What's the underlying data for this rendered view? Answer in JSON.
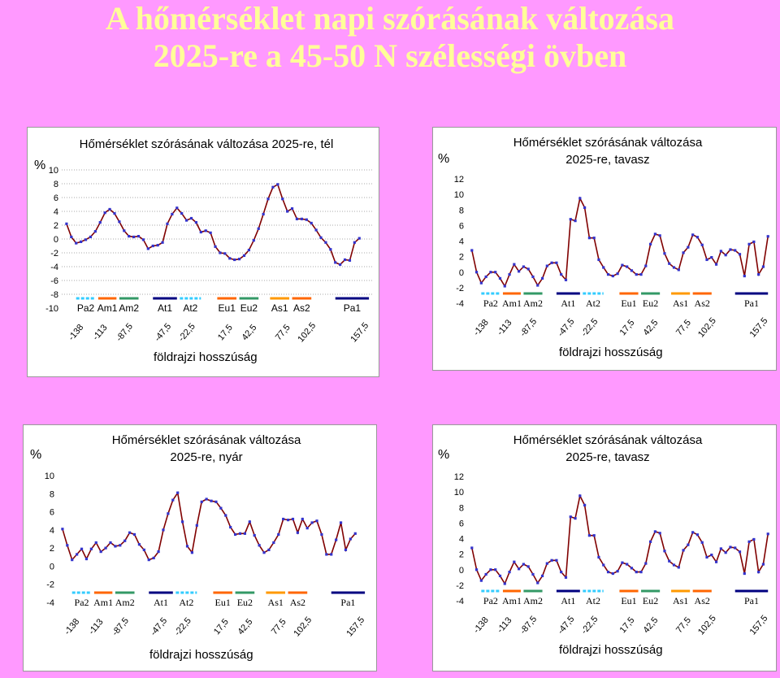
{
  "page": {
    "title_line1": "A hőmérséklet napi szórásának változása",
    "title_line2": "2025-re a 45-50 N szélességi övben"
  },
  "colors": {
    "background": "#ff99ff",
    "title": "#ffff99",
    "line": "#800000",
    "marker": "#3333cc"
  },
  "chart_data": [
    {
      "type": "line",
      "title_lines": [
        "Hőmérséklet szórásának változása 2025-re, tél"
      ],
      "ylabel": "%",
      "xlabel": "földrajzi hosszúság",
      "ylim": [
        -10,
        10
      ],
      "yticks": [
        -10,
        -8,
        -6,
        -4,
        -2,
        0,
        2,
        4,
        6,
        8,
        10
      ],
      "grid": true,
      "x_tick_labels": [
        {
          "label": "-138",
          "x": -138
        },
        {
          "label": "-113",
          "x": -113
        },
        {
          "label": "-87,5",
          "x": -87.5
        },
        {
          "label": "-47,5",
          "x": -47.5
        },
        {
          "label": "-22,5",
          "x": -22.5
        },
        {
          "label": "17,5",
          "x": 17.5
        },
        {
          "label": "42,5",
          "x": 42.5
        },
        {
          "label": "77,5",
          "x": 77.5
        },
        {
          "label": "102,5",
          "x": 102.5
        },
        {
          "label": "157,5",
          "x": 157.5
        }
      ],
      "regions": [
        {
          "label": "Pa2",
          "x_from": -145,
          "x_to": -125,
          "color": "#33ccff"
        },
        {
          "label": "Am1",
          "x_from": -122,
          "x_to": -103,
          "color": "#ff6600"
        },
        {
          "label": "Am2",
          "x_from": -100,
          "x_to": -80,
          "color": "#339966"
        },
        {
          "label": "At1",
          "x_from": -65,
          "x_to": -40,
          "color": "#000080"
        },
        {
          "label": "At2",
          "x_from": -37,
          "x_to": -15,
          "color": "#33ccff"
        },
        {
          "label": "Eu1",
          "x_from": 2,
          "x_to": 22,
          "color": "#ff6600"
        },
        {
          "label": "Eu2",
          "x_from": 25,
          "x_to": 45,
          "color": "#339966"
        },
        {
          "label": "As1",
          "x_from": 57,
          "x_to": 77,
          "color": "#ff9900"
        },
        {
          "label": "As2",
          "x_from": 80,
          "x_to": 100,
          "color": "#ff6600"
        },
        {
          "label": "Pa1",
          "x_from": 125,
          "x_to": 160,
          "color": "#000080"
        }
      ],
      "x": [
        -155,
        -150,
        -145,
        -140,
        -135,
        -130,
        -125,
        -120,
        -115,
        -110,
        -105,
        -100,
        -95,
        -90,
        -85,
        -80,
        -75,
        -70,
        -65,
        -60,
        -55,
        -50,
        -45,
        -40,
        -35,
        -30,
        -25,
        -20,
        -15,
        -10,
        -5,
        0,
        5,
        10,
        15,
        20,
        25,
        30,
        35,
        40,
        45,
        50,
        55,
        60,
        65,
        70,
        75,
        80,
        85,
        90,
        95,
        100,
        105,
        110,
        115,
        120,
        125,
        130,
        135,
        140,
        145,
        150,
        155,
        160
      ],
      "values": [
        2.2,
        0.3,
        -0.6,
        -0.4,
        -0.1,
        0.3,
        1.1,
        2.4,
        3.8,
        4.3,
        3.7,
        2.5,
        1.2,
        0.4,
        0.3,
        0.4,
        -0.1,
        -1.4,
        -1.0,
        -0.9,
        -0.5,
        2.2,
        3.6,
        4.5,
        3.7,
        2.7,
        3.0,
        2.4,
        1.0,
        1.2,
        0.9,
        -1.1,
        -2.0,
        -2.1,
        -2.8,
        -3.0,
        -2.9,
        -2.4,
        -1.6,
        -0.2,
        1.5,
        3.6,
        5.8,
        7.5,
        7.9,
        5.8,
        4.0,
        4.4,
        2.9,
        2.9,
        2.8,
        2.3,
        1.3,
        0.2,
        -0.5,
        -1.5,
        -3.4,
        -3.7,
        -3.0,
        -3.1,
        -0.5,
        0.1,
        null,
        null
      ]
    },
    {
      "type": "line",
      "title_lines": [
        "Hőmérséklet szórásának változása",
        "2025-re, tavasz"
      ],
      "ylabel": "%",
      "xlabel": "földrajzi hosszúság",
      "ylim": [
        -4,
        12
      ],
      "yticks": [
        -4,
        -2,
        0,
        2,
        4,
        6,
        8,
        10,
        12
      ],
      "grid": false,
      "x_tick_labels": [
        {
          "label": "-138",
          "x": -138
        },
        {
          "label": "-113",
          "x": -113
        },
        {
          "label": "-87,5",
          "x": -87.5
        },
        {
          "label": "-47,5",
          "x": -47.5
        },
        {
          "label": "-22,5",
          "x": -22.5
        },
        {
          "label": "17,5",
          "x": 17.5
        },
        {
          "label": "42,5",
          "x": 42.5
        },
        {
          "label": "77,5",
          "x": 77.5
        },
        {
          "label": "102,5",
          "x": 102.5
        },
        {
          "label": "157,5",
          "x": 157.5
        }
      ],
      "regions": [
        {
          "label": "Pa2",
          "x_from": -145,
          "x_to": -125,
          "color": "#33ccff"
        },
        {
          "label": "Am1",
          "x_from": -122,
          "x_to": -103,
          "color": "#ff6600"
        },
        {
          "label": "Am2",
          "x_from": -100,
          "x_to": -80,
          "color": "#339966"
        },
        {
          "label": "At1",
          "x_from": -65,
          "x_to": -40,
          "color": "#000080"
        },
        {
          "label": "At2",
          "x_from": -37,
          "x_to": -15,
          "color": "#33ccff"
        },
        {
          "label": "Eu1",
          "x_from": 2,
          "x_to": 22,
          "color": "#ff6600"
        },
        {
          "label": "Eu2",
          "x_from": 25,
          "x_to": 45,
          "color": "#339966"
        },
        {
          "label": "As1",
          "x_from": 57,
          "x_to": 77,
          "color": "#ff9900"
        },
        {
          "label": "As2",
          "x_from": 80,
          "x_to": 100,
          "color": "#ff6600"
        },
        {
          "label": "Pa1",
          "x_from": 125,
          "x_to": 160,
          "color": "#000080"
        }
      ],
      "x": [
        -155,
        -150,
        -145,
        -140,
        -135,
        -130,
        -125,
        -120,
        -115,
        -110,
        -105,
        -100,
        -95,
        -90,
        -85,
        -80,
        -75,
        -70,
        -65,
        -60,
        -55,
        -50,
        -45,
        -40,
        -35,
        -30,
        -25,
        -20,
        -15,
        -10,
        -5,
        0,
        5,
        10,
        15,
        20,
        25,
        30,
        35,
        40,
        45,
        50,
        55,
        60,
        65,
        70,
        75,
        80,
        85,
        90,
        95,
        100,
        105,
        110,
        115,
        120,
        125,
        130,
        135,
        140,
        145,
        150,
        155,
        160
      ],
      "values": [
        2.8,
        0.0,
        -1.4,
        -0.6,
        0.0,
        0.0,
        -0.8,
        -1.8,
        -0.3,
        1.0,
        0.1,
        0.7,
        0.4,
        -0.6,
        -1.7,
        -0.8,
        0.8,
        1.2,
        1.2,
        -0.3,
        -1.0,
        6.8,
        6.6,
        9.5,
        8.3,
        4.4,
        4.4,
        1.6,
        0.6,
        -0.3,
        -0.5,
        -0.2,
        0.9,
        0.7,
        0.2,
        -0.3,
        -0.3,
        0.8,
        3.6,
        4.9,
        4.7,
        2.4,
        1.1,
        0.6,
        0.3,
        2.5,
        3.2,
        4.8,
        4.5,
        3.5,
        1.6,
        1.9,
        1.0,
        2.7,
        2.2,
        2.9,
        2.8,
        2.3,
        -0.5,
        3.6,
        3.9,
        -0.3,
        0.7,
        4.6
      ]
    },
    {
      "type": "line",
      "title_lines": [
        "Hőmérséklet szórásának változása",
        "2025-re, nyár"
      ],
      "ylabel": "%",
      "xlabel": "földrajzi hosszúság",
      "ylim": [
        -4,
        10
      ],
      "yticks": [
        -4,
        -2,
        0,
        2,
        4,
        6,
        8,
        10
      ],
      "grid": false,
      "x_tick_labels": [
        {
          "label": "-138",
          "x": -138
        },
        {
          "label": "-113",
          "x": -113
        },
        {
          "label": "-87,5",
          "x": -87.5
        },
        {
          "label": "-47,5",
          "x": -47.5
        },
        {
          "label": "-22,5",
          "x": -22.5
        },
        {
          "label": "17,5",
          "x": 17.5
        },
        {
          "label": "42,5",
          "x": 42.5
        },
        {
          "label": "77,5",
          "x": 77.5
        },
        {
          "label": "102,5",
          "x": 102.5
        },
        {
          "label": "157,5",
          "x": 157.5
        }
      ],
      "regions": [
        {
          "label": "Pa2",
          "x_from": -145,
          "x_to": -125,
          "color": "#33ccff"
        },
        {
          "label": "Am1",
          "x_from": -122,
          "x_to": -103,
          "color": "#ff6600"
        },
        {
          "label": "Am2",
          "x_from": -100,
          "x_to": -80,
          "color": "#339966"
        },
        {
          "label": "At1",
          "x_from": -65,
          "x_to": -40,
          "color": "#000080"
        },
        {
          "label": "At2",
          "x_from": -37,
          "x_to": -15,
          "color": "#33ccff"
        },
        {
          "label": "Eu1",
          "x_from": 2,
          "x_to": 22,
          "color": "#ff6600"
        },
        {
          "label": "Eu2",
          "x_from": 25,
          "x_to": 45,
          "color": "#339966"
        },
        {
          "label": "As1",
          "x_from": 57,
          "x_to": 77,
          "color": "#ff9900"
        },
        {
          "label": "As2",
          "x_from": 80,
          "x_to": 100,
          "color": "#ff6600"
        },
        {
          "label": "Pa1",
          "x_from": 125,
          "x_to": 160,
          "color": "#000080"
        }
      ],
      "x": [
        -155,
        -150,
        -145,
        -140,
        -135,
        -130,
        -125,
        -120,
        -115,
        -110,
        -105,
        -100,
        -95,
        -90,
        -85,
        -80,
        -75,
        -70,
        -65,
        -60,
        -55,
        -50,
        -45,
        -40,
        -35,
        -30,
        -25,
        -20,
        -15,
        -10,
        -5,
        0,
        5,
        10,
        15,
        20,
        25,
        30,
        35,
        40,
        45,
        50,
        55,
        60,
        65,
        70,
        75,
        80,
        85,
        90,
        95,
        100,
        105,
        110,
        115,
        120,
        125,
        130,
        135,
        140,
        145,
        150,
        155,
        160
      ],
      "values": [
        4.1,
        2.3,
        0.7,
        1.3,
        1.9,
        0.8,
        1.9,
        2.6,
        1.6,
        2.0,
        2.6,
        2.2,
        2.3,
        2.8,
        3.7,
        3.5,
        2.4,
        1.8,
        0.7,
        0.9,
        1.6,
        4.0,
        5.8,
        7.3,
        8.1,
        4.9,
        2.2,
        1.5,
        4.5,
        7.1,
        7.4,
        7.2,
        7.1,
        6.4,
        5.6,
        4.3,
        3.5,
        3.6,
        3.6,
        4.9,
        3.4,
        2.3,
        1.5,
        1.8,
        2.6,
        3.5,
        5.2,
        5.1,
        5.2,
        3.7,
        5.2,
        4.2,
        4.8,
        5.0,
        3.5,
        1.3,
        1.3,
        2.9,
        4.8,
        1.8,
        3.0,
        3.6,
        null,
        null
      ]
    },
    {
      "type": "line",
      "title_lines": [
        "Hőmérséklet szórásának változása",
        "2025-re, tavasz"
      ],
      "ylabel": "%",
      "xlabel": "földrajzi hosszúság",
      "ylim": [
        -4,
        12
      ],
      "yticks": [
        -4,
        -2,
        0,
        2,
        4,
        6,
        8,
        10,
        12
      ],
      "grid": false,
      "x_tick_labels": [
        {
          "label": "-138",
          "x": -138
        },
        {
          "label": "-113",
          "x": -113
        },
        {
          "label": "-87,5",
          "x": -87.5
        },
        {
          "label": "-47,5",
          "x": -47.5
        },
        {
          "label": "-22,5",
          "x": -22.5
        },
        {
          "label": "17,5",
          "x": 17.5
        },
        {
          "label": "42,5",
          "x": 42.5
        },
        {
          "label": "77,5",
          "x": 77.5
        },
        {
          "label": "102,5",
          "x": 102.5
        },
        {
          "label": "157,5",
          "x": 157.5
        }
      ],
      "regions": [
        {
          "label": "Pa2",
          "x_from": -145,
          "x_to": -125,
          "color": "#33ccff"
        },
        {
          "label": "Am1",
          "x_from": -122,
          "x_to": -103,
          "color": "#ff6600"
        },
        {
          "label": "Am2",
          "x_from": -100,
          "x_to": -80,
          "color": "#339966"
        },
        {
          "label": "At1",
          "x_from": -65,
          "x_to": -40,
          "color": "#000080"
        },
        {
          "label": "At2",
          "x_from": -37,
          "x_to": -15,
          "color": "#33ccff"
        },
        {
          "label": "Eu1",
          "x_from": 2,
          "x_to": 22,
          "color": "#ff6600"
        },
        {
          "label": "Eu2",
          "x_from": 25,
          "x_to": 45,
          "color": "#339966"
        },
        {
          "label": "As1",
          "x_from": 57,
          "x_to": 77,
          "color": "#ff9900"
        },
        {
          "label": "As2",
          "x_from": 80,
          "x_to": 100,
          "color": "#ff6600"
        },
        {
          "label": "Pa1",
          "x_from": 125,
          "x_to": 160,
          "color": "#000080"
        }
      ],
      "x": [
        -155,
        -150,
        -145,
        -140,
        -135,
        -130,
        -125,
        -120,
        -115,
        -110,
        -105,
        -100,
        -95,
        -90,
        -85,
        -80,
        -75,
        -70,
        -65,
        -60,
        -55,
        -50,
        -45,
        -40,
        -35,
        -30,
        -25,
        -20,
        -15,
        -10,
        -5,
        0,
        5,
        10,
        15,
        20,
        25,
        30,
        35,
        40,
        45,
        50,
        55,
        60,
        65,
        70,
        75,
        80,
        85,
        90,
        95,
        100,
        105,
        110,
        115,
        120,
        125,
        130,
        135,
        140,
        145,
        150,
        155,
        160
      ],
      "values": [
        2.8,
        0.0,
        -1.4,
        -0.6,
        0.0,
        0.0,
        -0.8,
        -1.8,
        -0.3,
        1.0,
        0.1,
        0.7,
        0.4,
        -0.6,
        -1.7,
        -0.8,
        0.8,
        1.2,
        1.2,
        -0.3,
        -1.0,
        6.8,
        6.6,
        9.5,
        8.3,
        4.4,
        4.4,
        1.6,
        0.6,
        -0.3,
        -0.5,
        -0.2,
        0.9,
        0.7,
        0.2,
        -0.3,
        -0.3,
        0.8,
        3.6,
        4.9,
        4.7,
        2.4,
        1.1,
        0.6,
        0.3,
        2.5,
        3.2,
        4.8,
        4.5,
        3.5,
        1.6,
        1.9,
        1.0,
        2.7,
        2.2,
        2.9,
        2.8,
        2.3,
        -0.5,
        3.6,
        3.9,
        -0.3,
        0.7,
        4.6
      ]
    }
  ]
}
